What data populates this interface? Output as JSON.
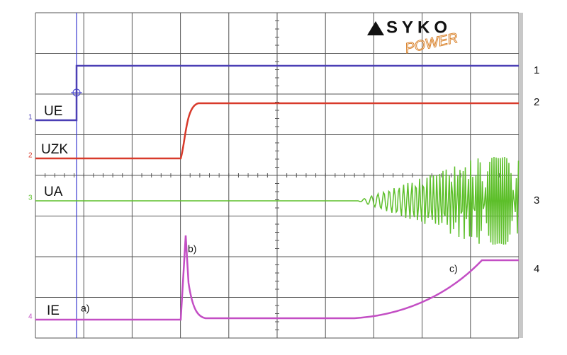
{
  "logo": {
    "brand": "SYKO",
    "sub": "POWER"
  },
  "channels": [
    {
      "label": "UE",
      "number": "1"
    },
    {
      "label": "UZK",
      "number": "2"
    },
    {
      "label": "UA",
      "number": "3"
    },
    {
      "label": "IE",
      "number": "4"
    }
  ],
  "annotations": [
    "a)",
    "b)",
    "c)"
  ]
}
